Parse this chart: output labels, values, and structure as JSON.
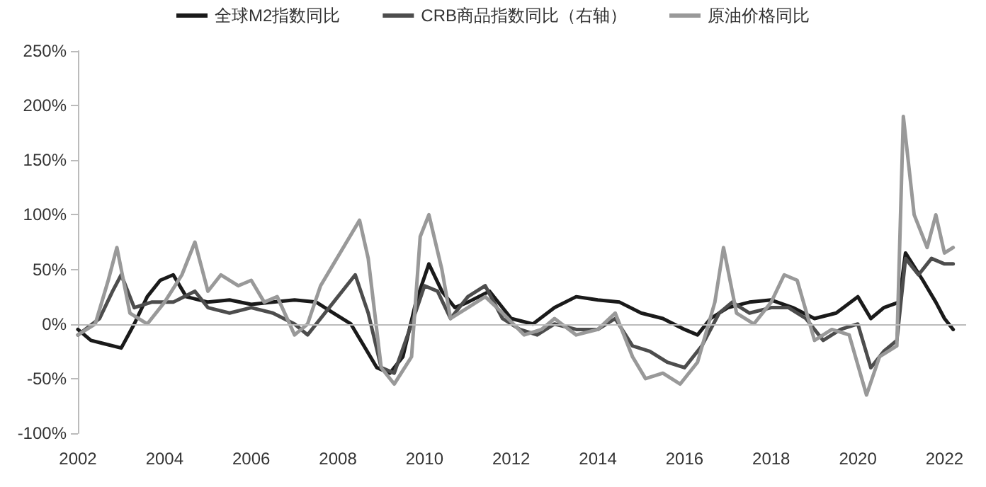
{
  "chart_data": {
    "type": "line",
    "legend": "top",
    "grid": false,
    "marker": "none",
    "line_style": "solid",
    "xlim": [
      2002,
      2022.5
    ],
    "xticks": [
      2002,
      2004,
      2006,
      2008,
      2010,
      2012,
      2014,
      2016,
      2018,
      2020,
      2022
    ],
    "ref_lines": [
      {
        "axis": "y",
        "value": 0,
        "color": "#bbbbbb"
      }
    ],
    "ylim": [
      -100,
      250
    ],
    "yticks": [
      {
        "value": -100,
        "label": "-100%"
      },
      {
        "value": -50,
        "label": "-50%"
      },
      {
        "value": 0,
        "label": "0%"
      },
      {
        "value": 50,
        "label": "50%"
      },
      {
        "value": 100,
        "label": "100%"
      },
      {
        "value": 150,
        "label": "150%"
      },
      {
        "value": 200,
        "label": "200%"
      },
      {
        "value": 250,
        "label": "250%"
      }
    ],
    "series": [
      {
        "name": "全球M2指数同比",
        "color": "#1a1a1a",
        "x": [
          2002,
          2002.3,
          2002.6,
          2003,
          2003.3,
          2003.6,
          2003.9,
          2004.2,
          2004.5,
          2005,
          2005.5,
          2006,
          2006.5,
          2007,
          2007.5,
          2007.9,
          2008.3,
          2008.6,
          2008.9,
          2009.2,
          2009.5,
          2009.8,
          2010.1,
          2010.4,
          2010.7,
          2011,
          2011.5,
          2012,
          2012.5,
          2013,
          2013.5,
          2014,
          2014.5,
          2015,
          2015.5,
          2016,
          2016.3,
          2016.6,
          2017,
          2017.5,
          2018,
          2018.5,
          2019,
          2019.5,
          2020,
          2020.3,
          2020.6,
          2020.95,
          2021.1,
          2021.5,
          2021.8,
          2022,
          2022.2
        ],
        "values": [
          -5,
          -15,
          -18,
          -22,
          0,
          25,
          40,
          45,
          25,
          20,
          22,
          18,
          20,
          22,
          20,
          10,
          0,
          -20,
          -40,
          -45,
          -30,
          20,
          55,
          30,
          15,
          20,
          30,
          5,
          0,
          15,
          25,
          22,
          20,
          10,
          5,
          -5,
          -10,
          5,
          15,
          20,
          22,
          15,
          5,
          10,
          25,
          5,
          15,
          20,
          65,
          40,
          20,
          5,
          -5
        ]
      },
      {
        "name": "CRB商品指数同比（右轴）",
        "color": "#4d4d4d",
        "x": [
          2002,
          2002.5,
          2002.8,
          2003,
          2003.3,
          2003.7,
          2004.2,
          2004.7,
          2005,
          2005.5,
          2006,
          2006.5,
          2007,
          2007.3,
          2007.6,
          2008,
          2008.4,
          2008.7,
          2009,
          2009.3,
          2009.7,
          2010,
          2010.3,
          2010.6,
          2011,
          2011.4,
          2011.8,
          2012.2,
          2012.6,
          2013,
          2013.5,
          2014,
          2014.4,
          2014.8,
          2015.2,
          2015.6,
          2016,
          2016.4,
          2016.8,
          2017.1,
          2017.5,
          2018,
          2018.4,
          2018.8,
          2019.2,
          2019.6,
          2020,
          2020.3,
          2020.6,
          2020.9,
          2021.1,
          2021.4,
          2021.7,
          2022,
          2022.2
        ],
        "values": [
          -10,
          5,
          30,
          45,
          15,
          20,
          20,
          30,
          15,
          10,
          15,
          10,
          0,
          -10,
          5,
          25,
          45,
          10,
          -40,
          -45,
          0,
          35,
          30,
          5,
          25,
          35,
          5,
          -5,
          -10,
          0,
          -5,
          -5,
          5,
          -20,
          -25,
          -35,
          -40,
          -20,
          10,
          20,
          10,
          15,
          15,
          5,
          -15,
          -5,
          0,
          -40,
          -25,
          -15,
          60,
          45,
          60,
          55,
          55
        ]
      },
      {
        "name": "原油价格同比",
        "color": "#999999",
        "x": [
          2002,
          2002.4,
          2002.7,
          2002.9,
          2003.2,
          2003.6,
          2004,
          2004.4,
          2004.7,
          2005,
          2005.3,
          2005.7,
          2006,
          2006.3,
          2006.6,
          2007,
          2007.3,
          2007.6,
          2007.9,
          2008.2,
          2008.5,
          2008.7,
          2009,
          2009.3,
          2009.7,
          2009.9,
          2010.1,
          2010.4,
          2010.6,
          2011,
          2011.4,
          2011.8,
          2012.3,
          2012.7,
          2013,
          2013.5,
          2014,
          2014.4,
          2014.8,
          2015.1,
          2015.5,
          2015.9,
          2016.3,
          2016.7,
          2016.9,
          2017.2,
          2017.6,
          2018,
          2018.3,
          2018.6,
          2019,
          2019.4,
          2019.8,
          2020.2,
          2020.5,
          2020.9,
          2021.05,
          2021.3,
          2021.6,
          2021.8,
          2022,
          2022.2
        ],
        "values": [
          -10,
          0,
          40,
          70,
          10,
          0,
          20,
          45,
          75,
          30,
          45,
          35,
          40,
          20,
          25,
          -10,
          0,
          35,
          55,
          75,
          95,
          60,
          -40,
          -55,
          -30,
          80,
          100,
          50,
          5,
          15,
          25,
          10,
          -10,
          -5,
          5,
          -10,
          -5,
          10,
          -30,
          -50,
          -45,
          -55,
          -35,
          20,
          70,
          10,
          0,
          20,
          45,
          40,
          -15,
          -5,
          -10,
          -65,
          -30,
          -20,
          190,
          100,
          70,
          100,
          65,
          70
        ]
      }
    ]
  }
}
